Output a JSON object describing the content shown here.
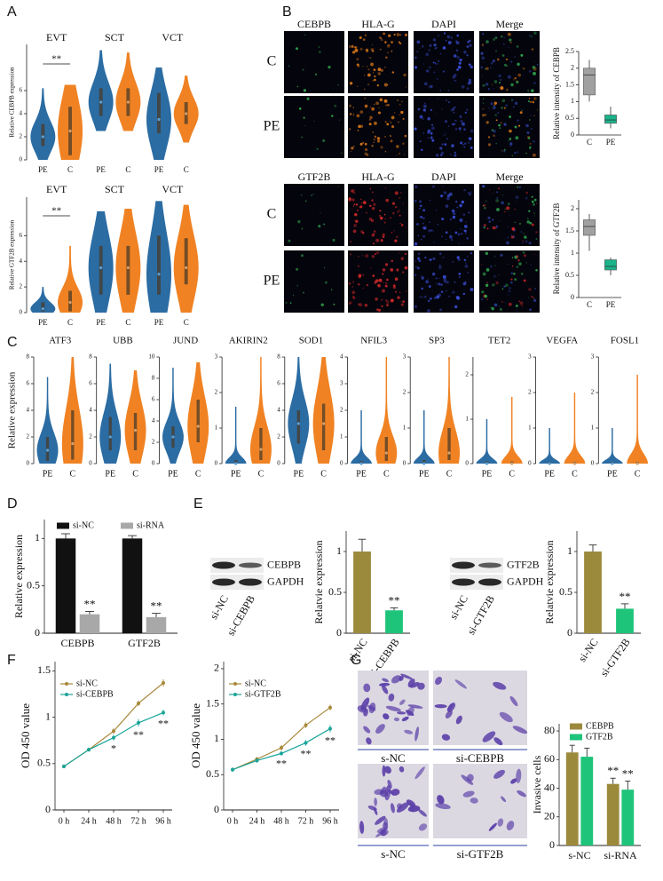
{
  "figure": {
    "panel_labels": [
      "A",
      "B",
      "C",
      "D",
      "E",
      "F",
      "G"
    ],
    "B": [
      {
        "columns": [
          "CEBPB",
          "HLA-G",
          "DAPI",
          "Merge"
        ],
        "column_colors": [
          "#2fa84f",
          "#e07b1a",
          "#2a3fa0",
          "#222222"
        ],
        "rows": [
          "C",
          "PE"
        ]
      },
      {
        "columns": [
          "GTF2B",
          "HLA-G",
          "DAPI",
          "Merge"
        ],
        "column_colors": [
          "#2fa84f",
          "#d42a2a",
          "#2a3fa0",
          "#222222"
        ],
        "rows": [
          "C",
          "PE"
        ]
      }
    ],
    "E": [
      {
        "bands": [
          "CEBPB",
          "GAPDH"
        ],
        "lanes": [
          "si-NC",
          "si-CEBPB"
        ]
      },
      {
        "bands": [
          "GTF2B",
          "GAPDH"
        ],
        "lanes": [
          "si-NC",
          "si-GTF2B"
        ]
      }
    ],
    "G": [
      "s-NC",
      "si-CEBPB",
      "s-NC",
      "si-GTF2B"
    ]
  },
  "chart_data": [
    {
      "type": "violin",
      "ylabel": "Relative CEBPB expression",
      "ylim": [
        0,
        10
      ],
      "yticks": [
        0,
        2,
        4,
        6
      ],
      "colors": [
        "#2b6ca3",
        "#f08223"
      ],
      "groups": [
        {
          "name": "EVT",
          "annotation": "**",
          "categories": [
            "PE",
            "C"
          ],
          "min": [
            0,
            0
          ],
          "q1": [
            1.2,
            0.4
          ],
          "median": [
            2,
            2.5
          ],
          "q3": [
            3.1,
            4.6
          ],
          "max": [
            6.2,
            6.5
          ]
        },
        {
          "name": "SCT",
          "categories": [
            "PE",
            "C"
          ],
          "min": [
            2.5,
            2.5
          ],
          "q1": [
            3.8,
            3.8
          ],
          "median": [
            5,
            5
          ],
          "q3": [
            6.2,
            6.2
          ],
          "max": [
            9.5,
            9.3
          ]
        },
        {
          "name": "VCT",
          "categories": [
            "PE",
            "C"
          ],
          "min": [
            0,
            1.5
          ],
          "q1": [
            2.3,
            3.1
          ],
          "median": [
            3.5,
            4
          ],
          "q3": [
            5.8,
            5
          ],
          "max": [
            8,
            7.3
          ]
        }
      ]
    },
    {
      "type": "violin",
      "ylabel": "Relative GTF2B expression",
      "ylim": [
        0,
        9
      ],
      "yticks": [
        0,
        2,
        4,
        6
      ],
      "colors": [
        "#2b6ca3",
        "#f08223"
      ],
      "groups": [
        {
          "name": "EVT",
          "annotation": "**",
          "categories": [
            "PE",
            "C"
          ],
          "min": [
            0,
            0
          ],
          "q1": [
            0.1,
            0.1
          ],
          "median": [
            0.3,
            0.8
          ],
          "q3": [
            0.8,
            1.7
          ],
          "max": [
            2,
            5.2
          ]
        },
        {
          "name": "SCT",
          "categories": [
            "PE",
            "C"
          ],
          "min": [
            0,
            0
          ],
          "q1": [
            1.4,
            1.4
          ],
          "median": [
            3.5,
            3.5
          ],
          "q3": [
            5.2,
            5.2
          ],
          "max": [
            7.9,
            8.1
          ]
        },
        {
          "name": "VCT",
          "categories": [
            "PE",
            "C"
          ],
          "min": [
            0,
            0
          ],
          "q1": [
            1.4,
            2.2
          ],
          "median": [
            3,
            3.5
          ],
          "q3": [
            6,
            5.8
          ],
          "max": [
            8.7,
            8.4
          ]
        }
      ]
    },
    {
      "type": "violin",
      "ylabel": "Relative expression",
      "colors": [
        "#2b6ca3",
        "#f08223"
      ],
      "groups": [
        {
          "name": "ATF3",
          "ylim": [
            0,
            8
          ],
          "yticks": [
            0,
            2,
            4,
            6,
            8
          ],
          "categories": [
            "PE",
            "C"
          ],
          "min": [
            0,
            0
          ],
          "q1": [
            0.2,
            0.3
          ],
          "median": [
            1,
            1.5
          ],
          "q3": [
            2,
            4
          ],
          "max": [
            6.5,
            8
          ]
        },
        {
          "name": "UBB",
          "ylim": [
            0,
            8
          ],
          "yticks": [
            0,
            2,
            4,
            6,
            8
          ],
          "categories": [
            "PE",
            "C"
          ],
          "min": [
            0,
            0
          ],
          "q1": [
            1,
            1
          ],
          "median": [
            2,
            2.5
          ],
          "q3": [
            3.5,
            3.8
          ],
          "max": [
            7.5,
            7
          ]
        },
        {
          "name": "JUND",
          "ylim": [
            0,
            10
          ],
          "yticks": [
            0,
            2,
            4,
            6,
            8,
            10
          ],
          "categories": [
            "PE",
            "C"
          ],
          "min": [
            0,
            0
          ],
          "q1": [
            1.5,
            2
          ],
          "median": [
            2.5,
            3.5
          ],
          "q3": [
            3.5,
            6
          ],
          "max": [
            9,
            9.5
          ]
        },
        {
          "name": "AKIRIN2",
          "ylim": [
            0,
            3
          ],
          "yticks": [
            0,
            1,
            2,
            3
          ],
          "categories": [
            "PE",
            "C"
          ],
          "min": [
            0,
            0
          ],
          "q1": [
            0,
            0.1
          ],
          "median": [
            0,
            0.4
          ],
          "q3": [
            0.1,
            1
          ],
          "max": [
            1.6,
            3
          ]
        },
        {
          "name": "SOD1",
          "ylim": [
            0,
            8
          ],
          "yticks": [
            0,
            2,
            4,
            6,
            8
          ],
          "categories": [
            "PE",
            "C"
          ],
          "min": [
            0,
            0
          ],
          "q1": [
            1.5,
            1
          ],
          "median": [
            3,
            3
          ],
          "q3": [
            4,
            4.5
          ],
          "max": [
            8,
            8
          ]
        },
        {
          "name": "NFIL3",
          "ylim": [
            0,
            4
          ],
          "yticks": [
            0,
            1,
            2,
            3,
            4
          ],
          "categories": [
            "PE",
            "C"
          ],
          "min": [
            0,
            0
          ],
          "q1": [
            0,
            0.1
          ],
          "median": [
            0,
            0.4
          ],
          "q3": [
            0.1,
            1
          ],
          "max": [
            2,
            4
          ]
        },
        {
          "name": "SP3",
          "ylim": [
            0,
            3
          ],
          "yticks": [
            0,
            1,
            2,
            3
          ],
          "categories": [
            "PE",
            "C"
          ],
          "min": [
            0,
            0
          ],
          "q1": [
            0,
            0.1
          ],
          "median": [
            0,
            0.3
          ],
          "q3": [
            0.1,
            1
          ],
          "max": [
            1.5,
            3
          ]
        },
        {
          "name": "TET2",
          "ylim": [
            0,
            2.4
          ],
          "yticks": [
            0,
            1,
            2
          ],
          "categories": [
            "PE",
            "C"
          ],
          "min": [
            0,
            0
          ],
          "q1": [
            0,
            0
          ],
          "median": [
            0,
            0
          ],
          "q3": [
            0.05,
            0.05
          ],
          "max": [
            1,
            1.5
          ]
        },
        {
          "name": "VEGFA",
          "ylim": [
            0,
            3
          ],
          "yticks": [
            0,
            1,
            2,
            3
          ],
          "categories": [
            "PE",
            "C"
          ],
          "min": [
            0,
            0
          ],
          "q1": [
            0,
            0
          ],
          "median": [
            0,
            0
          ],
          "q3": [
            0.05,
            0.05
          ],
          "max": [
            1,
            2
          ]
        },
        {
          "name": "FOSL1",
          "ylim": [
            0,
            3
          ],
          "yticks": [
            0,
            1,
            2,
            3
          ],
          "categories": [
            "PE",
            "C"
          ],
          "min": [
            0,
            0
          ],
          "q1": [
            0,
            0
          ],
          "median": [
            0,
            0
          ],
          "q3": [
            0.05,
            0.05
          ],
          "max": [
            1,
            2.5
          ]
        }
      ]
    },
    {
      "type": "box",
      "ylabel": "Relative intensity of CEBPB",
      "ylim": [
        0,
        2.5
      ],
      "yticks": [
        0,
        0.5,
        1,
        1.5,
        2,
        2.5
      ],
      "categories": [
        "C",
        "PE"
      ],
      "colors": [
        "#a0a0a0",
        "#1ab38a"
      ],
      "min": [
        1,
        0.2
      ],
      "q1": [
        1.2,
        0.35
      ],
      "median": [
        1.8,
        0.45
      ],
      "q3": [
        2,
        0.6
      ],
      "max": [
        2.25,
        0.85
      ]
    },
    {
      "type": "box",
      "ylabel": "Relative intensity of GTF2B",
      "ylim": [
        0,
        2.2
      ],
      "yticks": [
        0,
        0.5,
        1,
        1.5,
        2
      ],
      "categories": [
        "C",
        "PE"
      ],
      "colors": [
        "#a0a0a0",
        "#1ab38a"
      ],
      "min": [
        1.05,
        0.5
      ],
      "q1": [
        1.4,
        0.62
      ],
      "median": [
        1.6,
        0.7
      ],
      "q3": [
        1.75,
        0.85
      ],
      "max": [
        1.88,
        0.9
      ]
    },
    {
      "type": "bar",
      "ylabel": "Relative expression",
      "ylim": [
        0,
        1.2
      ],
      "yticks": [
        0,
        0.5,
        1
      ],
      "categories": [
        "CEBPB",
        "GTF2B"
      ],
      "series": [
        {
          "name": "si-NC",
          "color": "#111111",
          "values": [
            1,
            1
          ],
          "errors": [
            0.05,
            0.03
          ]
        },
        {
          "name": "si-RNA",
          "color": "#a8a8a8",
          "values": [
            0.2,
            0.17
          ],
          "errors": [
            0.03,
            0.04
          ],
          "labels": [
            "**",
            "**"
          ]
        }
      ]
    },
    {
      "type": "bar",
      "ylabel": "Relatvie expression",
      "ylim": [
        0,
        1.25
      ],
      "yticks": [
        0,
        0.5,
        1
      ],
      "categories": [
        "si-NC",
        "si-CEBPB"
      ],
      "values": [
        1,
        0.28
      ],
      "errors": [
        0.15,
        0.03
      ],
      "labels": [
        null,
        "**"
      ],
      "colors": [
        "#9c8a3c",
        "#1ec47a"
      ]
    },
    {
      "type": "bar",
      "ylabel": "Relatvie expression",
      "ylim": [
        0,
        1.25
      ],
      "yticks": [
        0,
        0.5,
        1
      ],
      "categories": [
        "si-NC",
        "si-GTF2B"
      ],
      "values": [
        1,
        0.3
      ],
      "errors": [
        0.08,
        0.06
      ],
      "labels": [
        null,
        "**"
      ],
      "colors": [
        "#9c8a3c",
        "#1ec47a"
      ]
    },
    {
      "type": "line",
      "ylabel": "OD 450 value",
      "ylim": [
        0,
        1.6
      ],
      "yticks": [
        0,
        0.5,
        1,
        1.5
      ],
      "categories": [
        "0 h",
        "24 h",
        "48 h",
        "72 h",
        "96 h"
      ],
      "series": [
        {
          "name": "si-NC",
          "color": "#a8893a",
          "values": [
            0.47,
            0.65,
            0.85,
            1.15,
            1.37
          ],
          "errors": [
            0.02,
            0.02,
            0.03,
            0.03,
            0.04
          ]
        },
        {
          "name": "si-CEBPB",
          "color": "#1aa59a",
          "values": [
            0.47,
            0.65,
            0.78,
            0.94,
            1.05
          ],
          "errors": [
            0.02,
            0.02,
            0.03,
            0.04,
            0.03
          ],
          "labels": [
            null,
            null,
            "*",
            "**",
            "**"
          ]
        }
      ]
    },
    {
      "type": "line",
      "ylabel": "OD 450 value",
      "ylim": [
        0,
        2.1
      ],
      "yticks": [
        0,
        0.5,
        1,
        1.5,
        2
      ],
      "categories": [
        "0 h",
        "24 h",
        "48 h",
        "72 h",
        "96 h"
      ],
      "series": [
        {
          "name": "si-NC",
          "color": "#a8893a",
          "values": [
            0.57,
            0.72,
            0.88,
            1.2,
            1.45
          ],
          "errors": [
            0.03,
            0.03,
            0.04,
            0.04,
            0.04
          ]
        },
        {
          "name": "si-GTF2B",
          "color": "#1aa59a",
          "values": [
            0.57,
            0.7,
            0.8,
            0.95,
            1.15
          ],
          "errors": [
            0.03,
            0.03,
            0.03,
            0.04,
            0.05
          ],
          "labels": [
            null,
            null,
            "**",
            "**",
            "**"
          ]
        }
      ]
    },
    {
      "type": "bar",
      "ylabel": "Invasive cells",
      "ylim": [
        0,
        85
      ],
      "yticks": [
        0,
        20,
        40,
        60,
        80
      ],
      "categories": [
        "s-NC",
        "si-RNA"
      ],
      "series": [
        {
          "name": "CEBPB",
          "color": "#9c8a3c",
          "values": [
            65,
            43
          ],
          "errors": [
            5,
            4
          ],
          "labels": [
            null,
            "**"
          ]
        },
        {
          "name": "GTF2B",
          "color": "#1ec47a",
          "values": [
            62,
            39
          ],
          "errors": [
            6,
            6
          ],
          "labels": [
            null,
            "**"
          ]
        }
      ]
    }
  ]
}
